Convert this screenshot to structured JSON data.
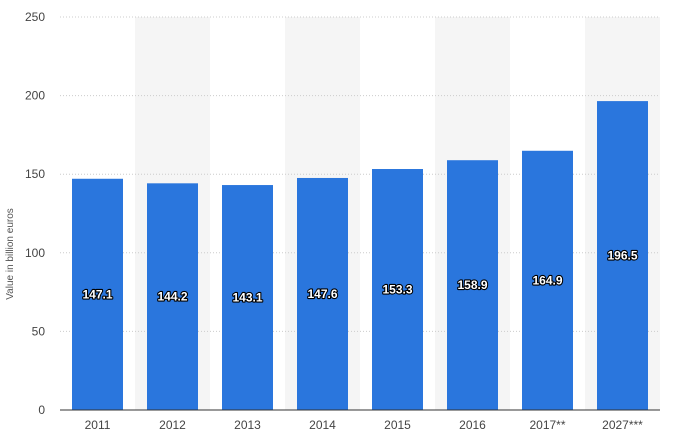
{
  "chart_data": {
    "type": "bar",
    "title": "",
    "xlabel": "",
    "ylabel": "Value in billion euros",
    "categories": [
      "2011",
      "2012",
      "2013",
      "2014",
      "2015",
      "2016",
      "2017**",
      "2027***"
    ],
    "values": [
      147.1,
      144.2,
      143.1,
      147.6,
      153.3,
      158.9,
      164.9,
      196.5
    ],
    "data_labels": [
      "147.1",
      "144.2",
      "143.1",
      "147.6",
      "153.3",
      "158.9",
      "164.9",
      "196.5"
    ],
    "ylim": [
      0,
      250
    ],
    "yticks": [
      0,
      50,
      100,
      150,
      200,
      250
    ],
    "ytick_labels": [
      "0",
      "50",
      "100",
      "150",
      "200",
      "250"
    ],
    "grid": true,
    "legend": "none",
    "colors": {
      "bar": "#2a76dd",
      "band": "#f5f5f5",
      "grid": "#cccccc",
      "axis": "#333333"
    }
  }
}
